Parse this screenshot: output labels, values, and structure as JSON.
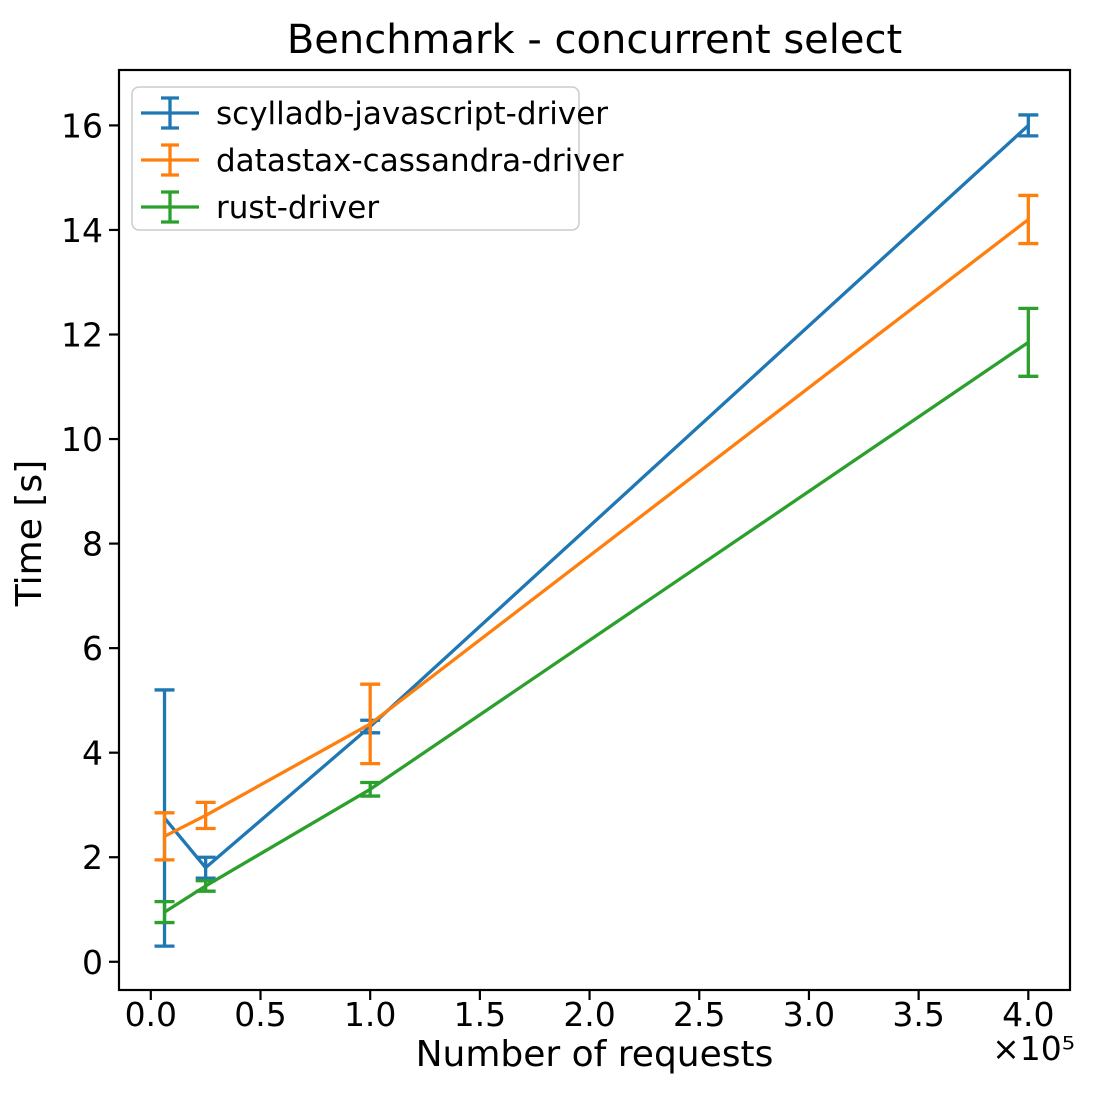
{
  "chart_data": {
    "type": "line",
    "title": "Benchmark - concurrent select",
    "xlabel": "Number of requests",
    "ylabel": "Time [s]",
    "x_offset_label": "×10⁵",
    "x": [
      6250,
      25000,
      100000,
      400000
    ],
    "series": [
      {
        "name": "scylladb-javascript-driver",
        "color": "#1f77b4",
        "values": [
          2.75,
          1.8,
          4.5,
          16.0
        ],
        "yerr": [
          2.45,
          0.2,
          0.12,
          0.2
        ]
      },
      {
        "name": "datastax-cassandra-driver",
        "color": "#ff7f0e",
        "values": [
          2.4,
          2.8,
          4.55,
          14.2
        ],
        "yerr": [
          0.45,
          0.25,
          0.76,
          0.46
        ]
      },
      {
        "name": "rust-driver",
        "color": "#2ca02c",
        "values": [
          0.95,
          1.45,
          3.3,
          11.85
        ],
        "yerr": [
          0.2,
          0.1,
          0.13,
          0.65
        ]
      }
    ],
    "xticks": {
      "values": [
        0,
        50000,
        100000,
        150000,
        200000,
        250000,
        300000,
        350000,
        400000
      ],
      "labels": [
        "0.0",
        "0.5",
        "1.0",
        "1.5",
        "2.0",
        "2.5",
        "3.0",
        "3.5",
        "4.0"
      ]
    },
    "yticks": {
      "values": [
        0,
        2,
        4,
        6,
        8,
        10,
        12,
        14,
        16
      ],
      "labels": [
        "0",
        "2",
        "4",
        "6",
        "8",
        "10",
        "12",
        "14",
        "16"
      ]
    },
    "xlim": [
      -14500,
      419000
    ],
    "ylim": [
      -0.54,
      17.06
    ],
    "grid": false,
    "legend": {
      "position": "upper left"
    },
    "axis_color": "#000000",
    "legend_border_color": "#cccccc"
  }
}
